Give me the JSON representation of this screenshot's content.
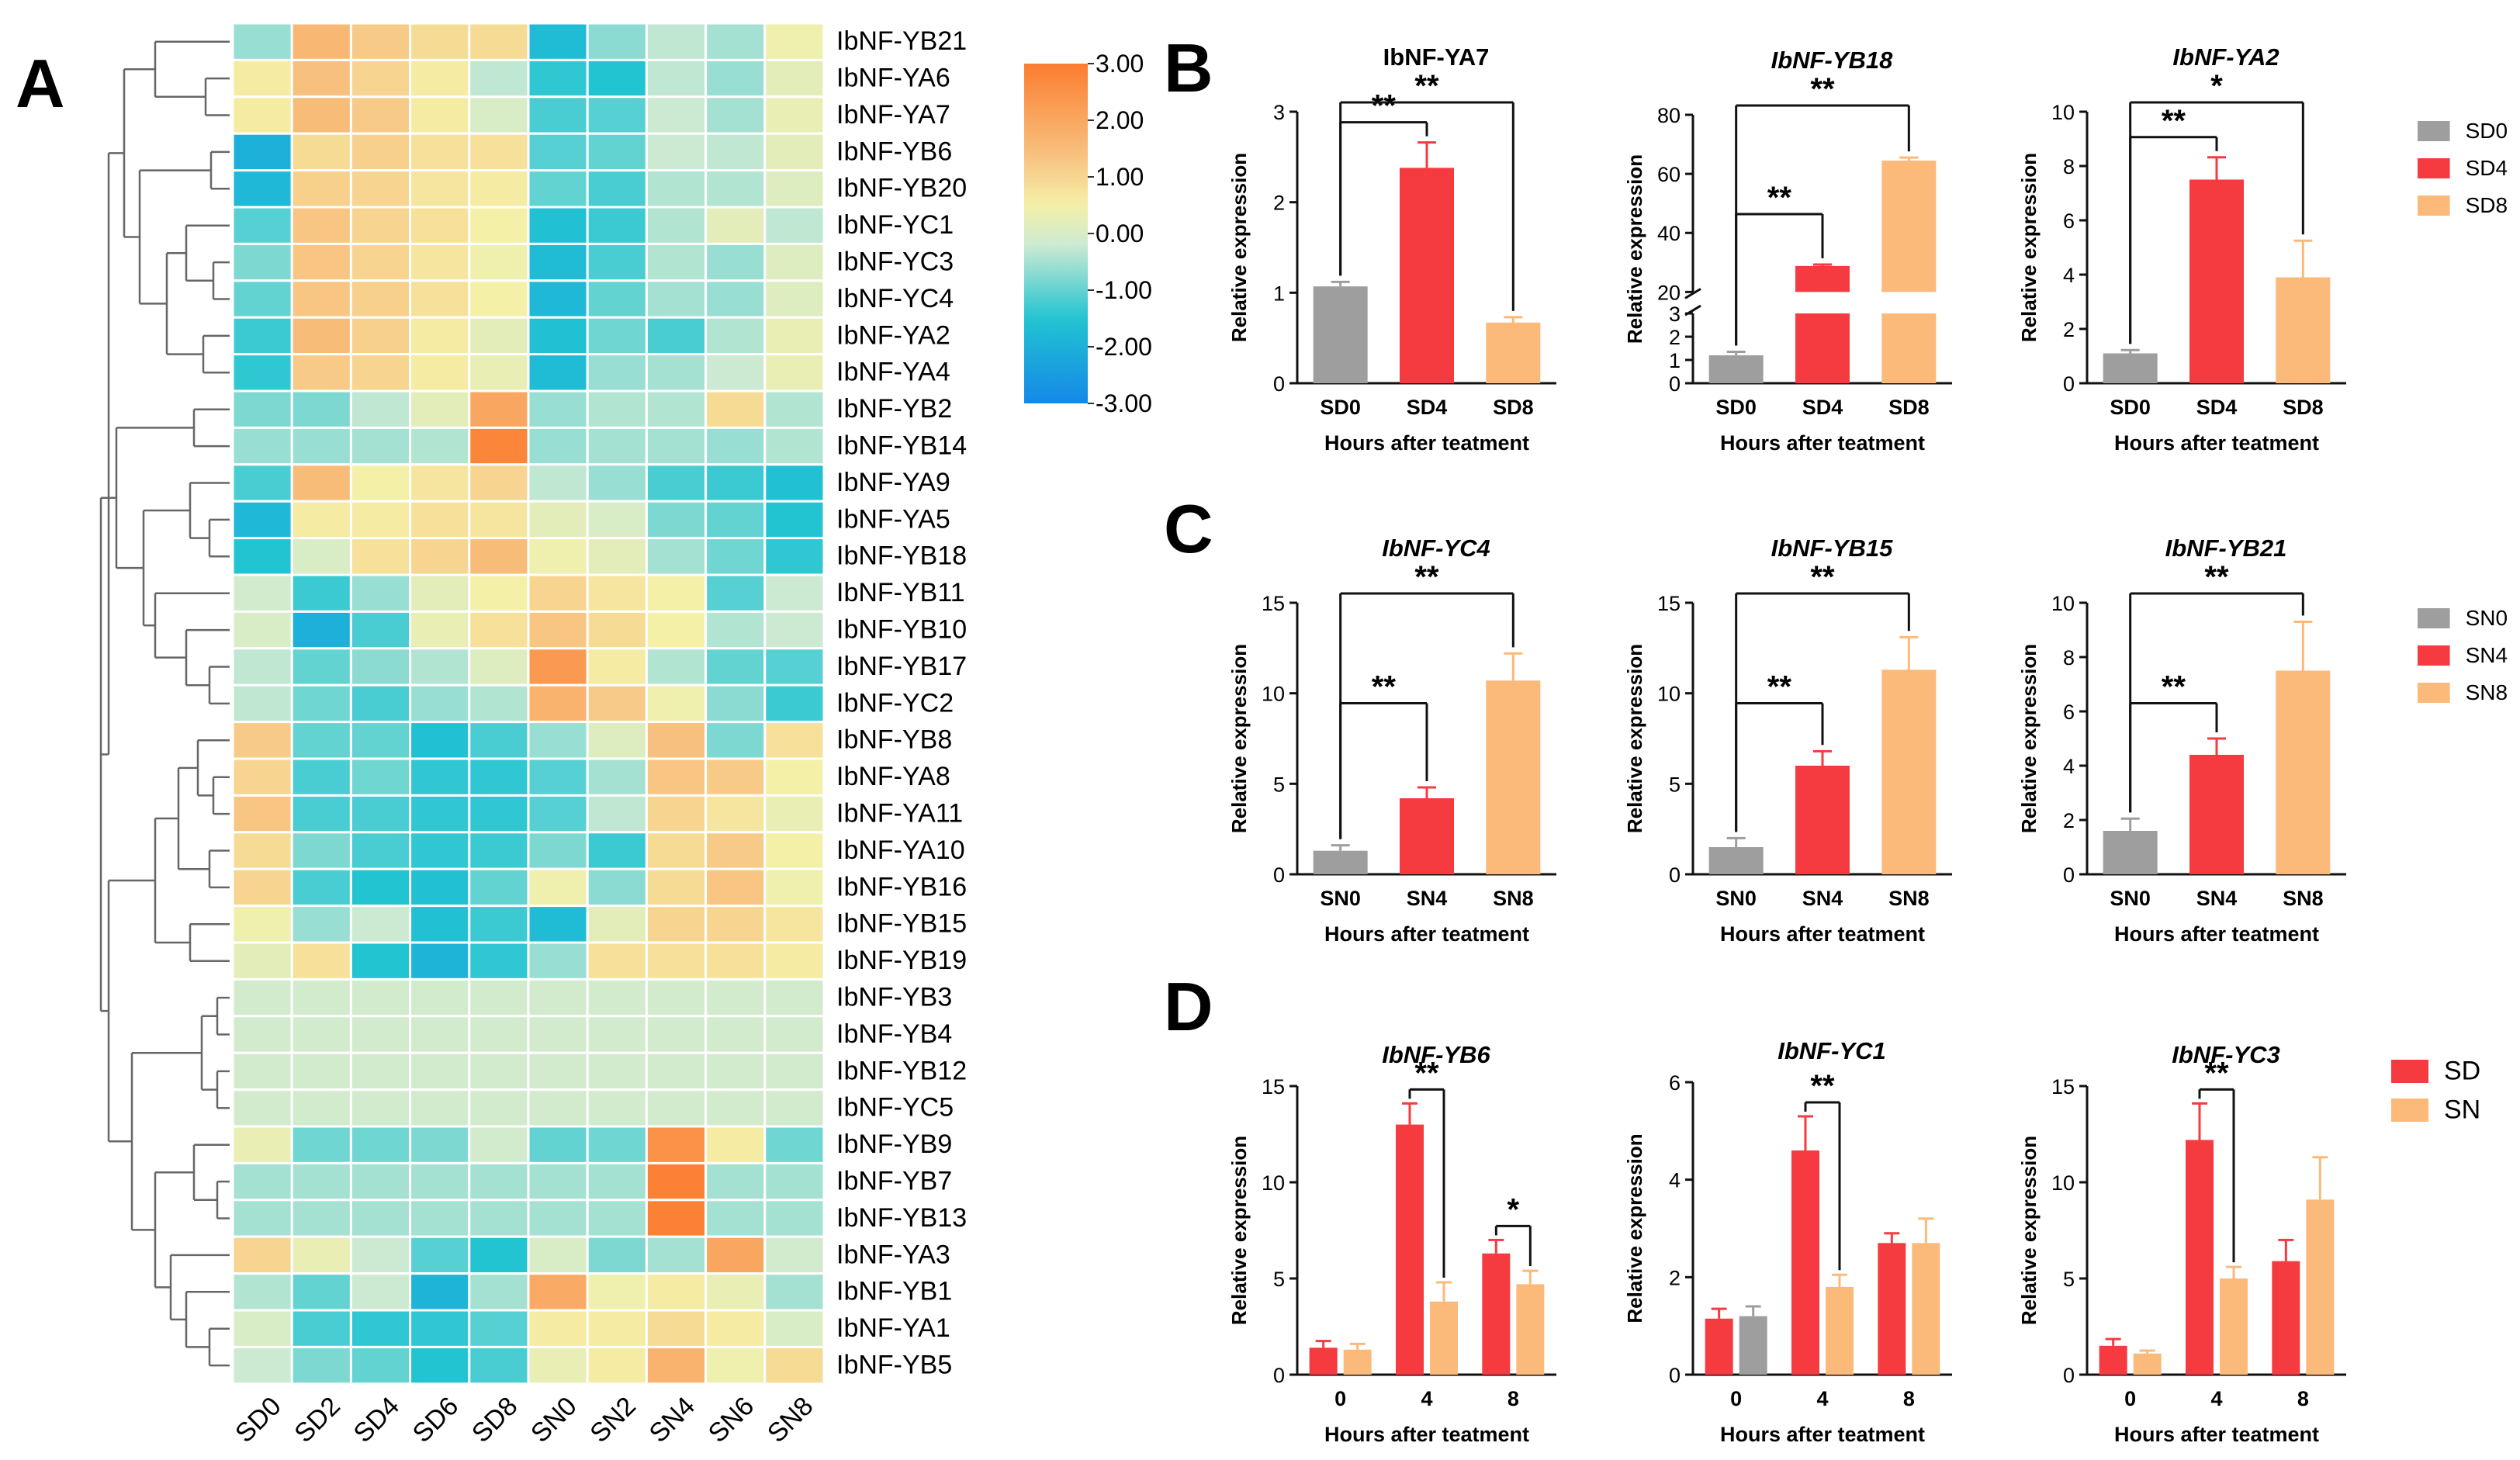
{
  "panels": {
    "A": "A",
    "B": "B",
    "C": "C",
    "D": "D"
  },
  "colors": {
    "gray": "#9e9e9e",
    "red": "#f53a40",
    "orange": "#fbb97a",
    "heat_stops": [
      "#1488e8",
      "#22c4d2",
      "#ccead2",
      "#f5f0a8",
      "#f8c07e",
      "#fb7d2f"
    ]
  },
  "chart_data": [
    {
      "id": "heatmap",
      "type": "heatmap",
      "columns": [
        "SD0",
        "SD2",
        "SD4",
        "SD6",
        "SD8",
        "SN0",
        "SN2",
        "SN4",
        "SN6",
        "SN8"
      ],
      "rows": [
        "IbNF-YB21",
        "IbNF-YA6",
        "IbNF-YA7",
        "IbNF-YB6",
        "IbNF-YB20",
        "IbNF-YC1",
        "IbNF-YC3",
        "IbNF-YC4",
        "IbNF-YA2",
        "IbNF-YA4",
        "IbNF-YB2",
        "IbNF-YB14",
        "IbNF-YA9",
        "IbNF-YA5",
        "IbNF-YB18",
        "IbNF-YB11",
        "IbNF-YB10",
        "IbNF-YB17",
        "IbNF-YC2",
        "IbNF-YB8",
        "IbNF-YA8",
        "IbNF-YA11",
        "IbNF-YA10",
        "IbNF-YB16",
        "IbNF-YB15",
        "IbNF-YB19",
        "IbNF-YB3",
        "IbNF-YB4",
        "IbNF-YB12",
        "IbNF-YC5",
        "IbNF-YB9",
        "IbNF-YB7",
        "IbNF-YB13",
        "IbNF-YA3",
        "IbNF-YB1",
        "IbNF-YA1",
        "IbNF-YB5"
      ],
      "values": [
        [
          -0.6,
          1.6,
          1.2,
          0.9,
          0.9,
          -1.7,
          -0.7,
          -0.3,
          -0.5,
          0.4
        ],
        [
          0.6,
          1.4,
          1.0,
          0.6,
          -0.3,
          -1.4,
          -1.5,
          -0.3,
          -0.6,
          0.2
        ],
        [
          0.6,
          1.5,
          1.2,
          0.6,
          0.0,
          -1.2,
          -1.1,
          -0.2,
          -0.5,
          0.3
        ],
        [
          -2.0,
          0.9,
          1.1,
          0.8,
          0.8,
          -1.1,
          -1.0,
          -0.2,
          -0.3,
          0.2
        ],
        [
          -1.8,
          1.1,
          1.0,
          0.7,
          0.6,
          -1.0,
          -1.2,
          -0.4,
          -0.4,
          0.1
        ],
        [
          -1.1,
          1.3,
          1.0,
          0.8,
          0.5,
          -1.6,
          -1.3,
          -0.4,
          0.2,
          -0.3
        ],
        [
          -0.8,
          1.3,
          1.0,
          0.7,
          0.4,
          -1.7,
          -1.2,
          -0.4,
          -0.6,
          0.1
        ],
        [
          -1.0,
          1.3,
          1.1,
          0.8,
          0.5,
          -1.8,
          -1.0,
          -0.5,
          -0.6,
          0.1
        ],
        [
          -1.3,
          1.5,
          1.1,
          0.6,
          0.2,
          -1.6,
          -0.9,
          -1.2,
          -0.4,
          0.3
        ],
        [
          -1.4,
          1.2,
          1.0,
          0.6,
          0.3,
          -1.7,
          -0.6,
          -0.5,
          -0.2,
          0.3
        ],
        [
          -0.8,
          -0.8,
          -0.3,
          0.2,
          2.0,
          -0.6,
          -0.4,
          -0.4,
          0.9,
          -0.4
        ],
        [
          -0.6,
          -0.6,
          -0.5,
          -0.4,
          2.8,
          -0.6,
          -0.5,
          -0.5,
          -0.6,
          -0.4
        ],
        [
          -1.2,
          1.5,
          0.5,
          0.7,
          1.0,
          -0.3,
          -0.6,
          -1.2,
          -1.3,
          -1.6
        ],
        [
          -1.8,
          0.6,
          0.6,
          0.8,
          0.7,
          0.2,
          0.0,
          -0.8,
          -1.0,
          -1.5
        ],
        [
          -1.5,
          0.0,
          0.8,
          1.0,
          1.5,
          0.4,
          0.2,
          -0.5,
          -0.9,
          -1.4
        ],
        [
          -0.1,
          -1.3,
          -0.6,
          0.2,
          0.5,
          1.0,
          0.7,
          0.5,
          -1.1,
          -0.2
        ],
        [
          0.0,
          -2.0,
          -1.2,
          0.3,
          0.8,
          1.3,
          0.9,
          0.5,
          -0.4,
          -0.2
        ],
        [
          -0.3,
          -1.0,
          -0.7,
          -0.4,
          0.1,
          2.3,
          0.6,
          -0.4,
          -1.0,
          -1.1
        ],
        [
          -0.3,
          -0.9,
          -1.2,
          -0.6,
          -0.4,
          1.7,
          1.2,
          0.4,
          -0.7,
          -1.3
        ],
        [
          1.2,
          -1.0,
          -1.0,
          -1.6,
          -1.2,
          -0.6,
          0.1,
          1.4,
          -0.8,
          0.8
        ],
        [
          1.0,
          -1.2,
          -0.9,
          -1.4,
          -1.4,
          -1.1,
          -0.5,
          1.3,
          1.2,
          0.5
        ],
        [
          1.3,
          -1.2,
          -1.2,
          -1.4,
          -1.4,
          -1.1,
          -0.3,
          1.0,
          0.7,
          0.3
        ],
        [
          0.9,
          -0.8,
          -1.2,
          -1.4,
          -1.3,
          -0.8,
          -1.3,
          0.9,
          1.2,
          0.5
        ],
        [
          1.0,
          -1.2,
          -1.5,
          -1.6,
          -1.0,
          0.4,
          -0.7,
          0.9,
          1.3,
          0.4
        ],
        [
          0.4,
          -0.6,
          -0.2,
          -1.6,
          -1.3,
          -1.7,
          0.2,
          1.0,
          1.0,
          0.7
        ],
        [
          0.2,
          0.8,
          -1.5,
          -1.9,
          -1.4,
          -0.6,
          0.8,
          0.8,
          0.8,
          0.6
        ],
        [
          -0.1,
          -0.1,
          -0.1,
          -0.1,
          -0.1,
          -0.1,
          -0.1,
          -0.1,
          -0.1,
          -0.1
        ],
        [
          -0.1,
          -0.1,
          -0.1,
          -0.1,
          -0.1,
          -0.1,
          -0.1,
          -0.1,
          -0.1,
          -0.1
        ],
        [
          -0.1,
          -0.1,
          -0.1,
          -0.1,
          -0.1,
          -0.1,
          -0.1,
          -0.1,
          -0.1,
          -0.1
        ],
        [
          -0.1,
          -0.1,
          -0.1,
          -0.1,
          -0.1,
          -0.1,
          -0.1,
          -0.1,
          -0.1,
          -0.1
        ],
        [
          0.3,
          -0.9,
          -0.9,
          -0.8,
          -0.1,
          -1.0,
          -0.9,
          2.5,
          0.6,
          -0.9
        ],
        [
          -0.5,
          -0.5,
          -0.5,
          -0.5,
          -0.5,
          -0.5,
          -0.5,
          2.9,
          -0.5,
          -0.5
        ],
        [
          -0.5,
          -0.5,
          -0.5,
          -0.5,
          -0.5,
          -0.5,
          -0.5,
          2.9,
          -0.5,
          -0.5
        ],
        [
          1.0,
          0.3,
          -0.2,
          -1.1,
          -1.5,
          0.0,
          -0.8,
          -0.5,
          2.0,
          -0.1
        ],
        [
          -0.4,
          -1.0,
          -0.2,
          -1.9,
          -0.5,
          1.9,
          0.4,
          0.6,
          0.3,
          -0.5
        ],
        [
          0.0,
          -1.2,
          -1.4,
          -1.4,
          -1.1,
          0.6,
          0.6,
          0.9,
          0.6,
          0.0
        ],
        [
          -0.2,
          -0.8,
          -1.0,
          -1.5,
          -1.2,
          0.3,
          0.6,
          1.7,
          0.4,
          0.9
        ]
      ],
      "colorbar": {
        "min": -3.0,
        "max": 3.0,
        "ticks": [
          "3.00",
          "2.00",
          "1.00",
          "0.00",
          "-1.00",
          "-2.00",
          "-3.00"
        ]
      }
    },
    {
      "id": "B1",
      "type": "bar",
      "title": "IbNF-YA7",
      "italic": false,
      "categories": [
        "SD0",
        "SD4",
        "SD8"
      ],
      "values": [
        1.07,
        2.38,
        0.67
      ],
      "errors": [
        0.05,
        0.28,
        0.06
      ],
      "colors": [
        "gray",
        "red",
        "orange"
      ],
      "ylim": [
        0,
        3
      ],
      "yticks": [
        "0",
        "1",
        "2",
        "3"
      ],
      "ylabel": "Relative expression",
      "xlabel": "Hours after teatment",
      "sig": [
        {
          "from": 0,
          "to": 1,
          "label": "**"
        },
        {
          "from": 0,
          "to": 2,
          "label": "**"
        }
      ]
    },
    {
      "id": "B2",
      "type": "bar",
      "title": "IbNF-YB18",
      "italic": true,
      "categories": [
        "SD0",
        "SD4",
        "SD8"
      ],
      "values": [
        1.2,
        28.8,
        64.5
      ],
      "errors": [
        0.15,
        0.5,
        1.0
      ],
      "colors": [
        "gray",
        "red",
        "orange"
      ],
      "broken_axis": {
        "lower": [
          0,
          3
        ],
        "upper": [
          20,
          80
        ]
      },
      "yticks_lower": [
        "0",
        "1",
        "2",
        "3"
      ],
      "yticks_upper": [
        "20",
        "40",
        "60",
        "80"
      ],
      "ylabel": "Relative expression",
      "xlabel": "Hours after teatment",
      "sig": [
        {
          "from": 0,
          "to": 1,
          "label": "**"
        },
        {
          "from": 0,
          "to": 2,
          "label": "**"
        }
      ]
    },
    {
      "id": "B3",
      "type": "bar",
      "title": "IbNF-YA2",
      "italic": true,
      "categories": [
        "SD0",
        "SD4",
        "SD8"
      ],
      "values": [
        1.1,
        7.5,
        3.9
      ],
      "errors": [
        0.12,
        0.82,
        1.35
      ],
      "colors": [
        "gray",
        "red",
        "orange"
      ],
      "ylim": [
        0,
        10
      ],
      "yticks": [
        "0",
        "2",
        "4",
        "6",
        "8",
        "10"
      ],
      "ylabel": "Relative expression",
      "xlabel": "Hours after teatment",
      "sig": [
        {
          "from": 0,
          "to": 1,
          "label": "**"
        },
        {
          "from": 0,
          "to": 2,
          "label": "*"
        }
      ]
    },
    {
      "id": "C1",
      "type": "bar",
      "title": "IbNF-YC4",
      "italic": true,
      "categories": [
        "SN0",
        "SN4",
        "SN8"
      ],
      "values": [
        1.3,
        4.2,
        10.7
      ],
      "errors": [
        0.3,
        0.6,
        1.5
      ],
      "colors": [
        "gray",
        "red",
        "orange"
      ],
      "ylim": [
        0,
        15
      ],
      "yticks": [
        "0",
        "5",
        "10",
        "15"
      ],
      "ylabel": "Relative expression",
      "xlabel": "Hours after teatment",
      "sig": [
        {
          "from": 0,
          "to": 1,
          "label": "**"
        },
        {
          "from": 0,
          "to": 2,
          "label": "**"
        }
      ]
    },
    {
      "id": "C2",
      "type": "bar",
      "title": "IbNF-YB15",
      "italic": true,
      "categories": [
        "SN0",
        "SN4",
        "SN8"
      ],
      "values": [
        1.5,
        6.0,
        11.3
      ],
      "errors": [
        0.5,
        0.8,
        1.8
      ],
      "colors": [
        "gray",
        "red",
        "orange"
      ],
      "ylim": [
        0,
        15
      ],
      "yticks": [
        "0",
        "5",
        "10",
        "15"
      ],
      "ylabel": "Relative expression",
      "xlabel": "Hours after teatment",
      "sig": [
        {
          "from": 0,
          "to": 1,
          "label": "**"
        },
        {
          "from": 0,
          "to": 2,
          "label": "**"
        }
      ]
    },
    {
      "id": "C3",
      "type": "bar",
      "title": "IbNF-YB21",
      "italic": true,
      "categories": [
        "SN0",
        "SN4",
        "SN8"
      ],
      "values": [
        1.6,
        4.4,
        7.5
      ],
      "errors": [
        0.45,
        0.6,
        1.8
      ],
      "colors": [
        "gray",
        "red",
        "orange"
      ],
      "ylim": [
        0,
        10
      ],
      "yticks": [
        "0",
        "2",
        "4",
        "6",
        "8",
        "10"
      ],
      "ylabel": "Relative expression",
      "xlabel": "Hours after teatment",
      "sig": [
        {
          "from": 0,
          "to": 1,
          "label": "**"
        },
        {
          "from": 0,
          "to": 2,
          "label": "**"
        }
      ]
    },
    {
      "id": "D1",
      "type": "bar",
      "grouped": true,
      "title": "IbNF-YB6",
      "italic": true,
      "categories": [
        "0",
        "4",
        "8"
      ],
      "series": [
        {
          "name": "SD",
          "color": "red",
          "values": [
            1.4,
            13.0,
            6.3
          ],
          "errors": [
            0.35,
            1.1,
            0.7
          ]
        },
        {
          "name": "SN",
          "color": "orange",
          "values": [
            1.3,
            3.8,
            4.7
          ],
          "errors": [
            0.3,
            1.0,
            0.7
          ]
        }
      ],
      "ylim": [
        0,
        15
      ],
      "yticks": [
        "0",
        "5",
        "10",
        "15"
      ],
      "ylabel": "Relative expression",
      "xlabel": "Hours after teatment",
      "sig": [
        {
          "group": 1,
          "label": "**"
        },
        {
          "group": 2,
          "label": "*"
        }
      ]
    },
    {
      "id": "D2",
      "type": "bar",
      "grouped": true,
      "title": "IbNF-YC1",
      "italic": true,
      "categories": [
        "0",
        "4",
        "8"
      ],
      "series": [
        {
          "name": "SD",
          "color": "red",
          "values": [
            1.15,
            4.6,
            2.7
          ],
          "errors": [
            0.2,
            0.7,
            0.2
          ]
        },
        {
          "name": "SN",
          "color": "orange",
          "values": [
            1.2,
            1.8,
            2.7
          ],
          "errors": [
            0.2,
            0.25,
            0.5
          ]
        }
      ],
      "overrides": [
        {
          "group": 0,
          "series": 1,
          "color": "gray"
        }
      ],
      "ylim": [
        0,
        6
      ],
      "yticks": [
        "0",
        "2",
        "4",
        "6"
      ],
      "ylabel": "Relative expression",
      "xlabel": "Hours after teatment",
      "sig": [
        {
          "group": 1,
          "label": "**"
        }
      ]
    },
    {
      "id": "D3",
      "type": "bar",
      "grouped": true,
      "title": "IbNF-YC3",
      "italic": true,
      "categories": [
        "0",
        "4",
        "8"
      ],
      "series": [
        {
          "name": "SD",
          "color": "red",
          "values": [
            1.5,
            12.2,
            5.9
          ],
          "errors": [
            0.35,
            1.9,
            1.1
          ]
        },
        {
          "name": "SN",
          "color": "orange",
          "values": [
            1.1,
            5.0,
            9.1
          ],
          "errors": [
            0.15,
            0.6,
            2.2
          ]
        }
      ],
      "ylim": [
        0,
        15
      ],
      "yticks": [
        "0",
        "5",
        "10",
        "15"
      ],
      "ylabel": "Relative expression",
      "xlabel": "Hours after teatment",
      "sig": [
        {
          "group": 1,
          "label": "**"
        }
      ]
    }
  ],
  "legends": {
    "B": [
      {
        "label": "SD0",
        "color": "gray"
      },
      {
        "label": "SD4",
        "color": "red"
      },
      {
        "label": "SD8",
        "color": "orange"
      }
    ],
    "C": [
      {
        "label": "SN0",
        "color": "gray"
      },
      {
        "label": "SN4",
        "color": "red"
      },
      {
        "label": "SN8",
        "color": "orange"
      }
    ],
    "D": [
      {
        "label": "SD",
        "color": "red"
      },
      {
        "label": "SN",
        "color": "orange"
      }
    ]
  }
}
